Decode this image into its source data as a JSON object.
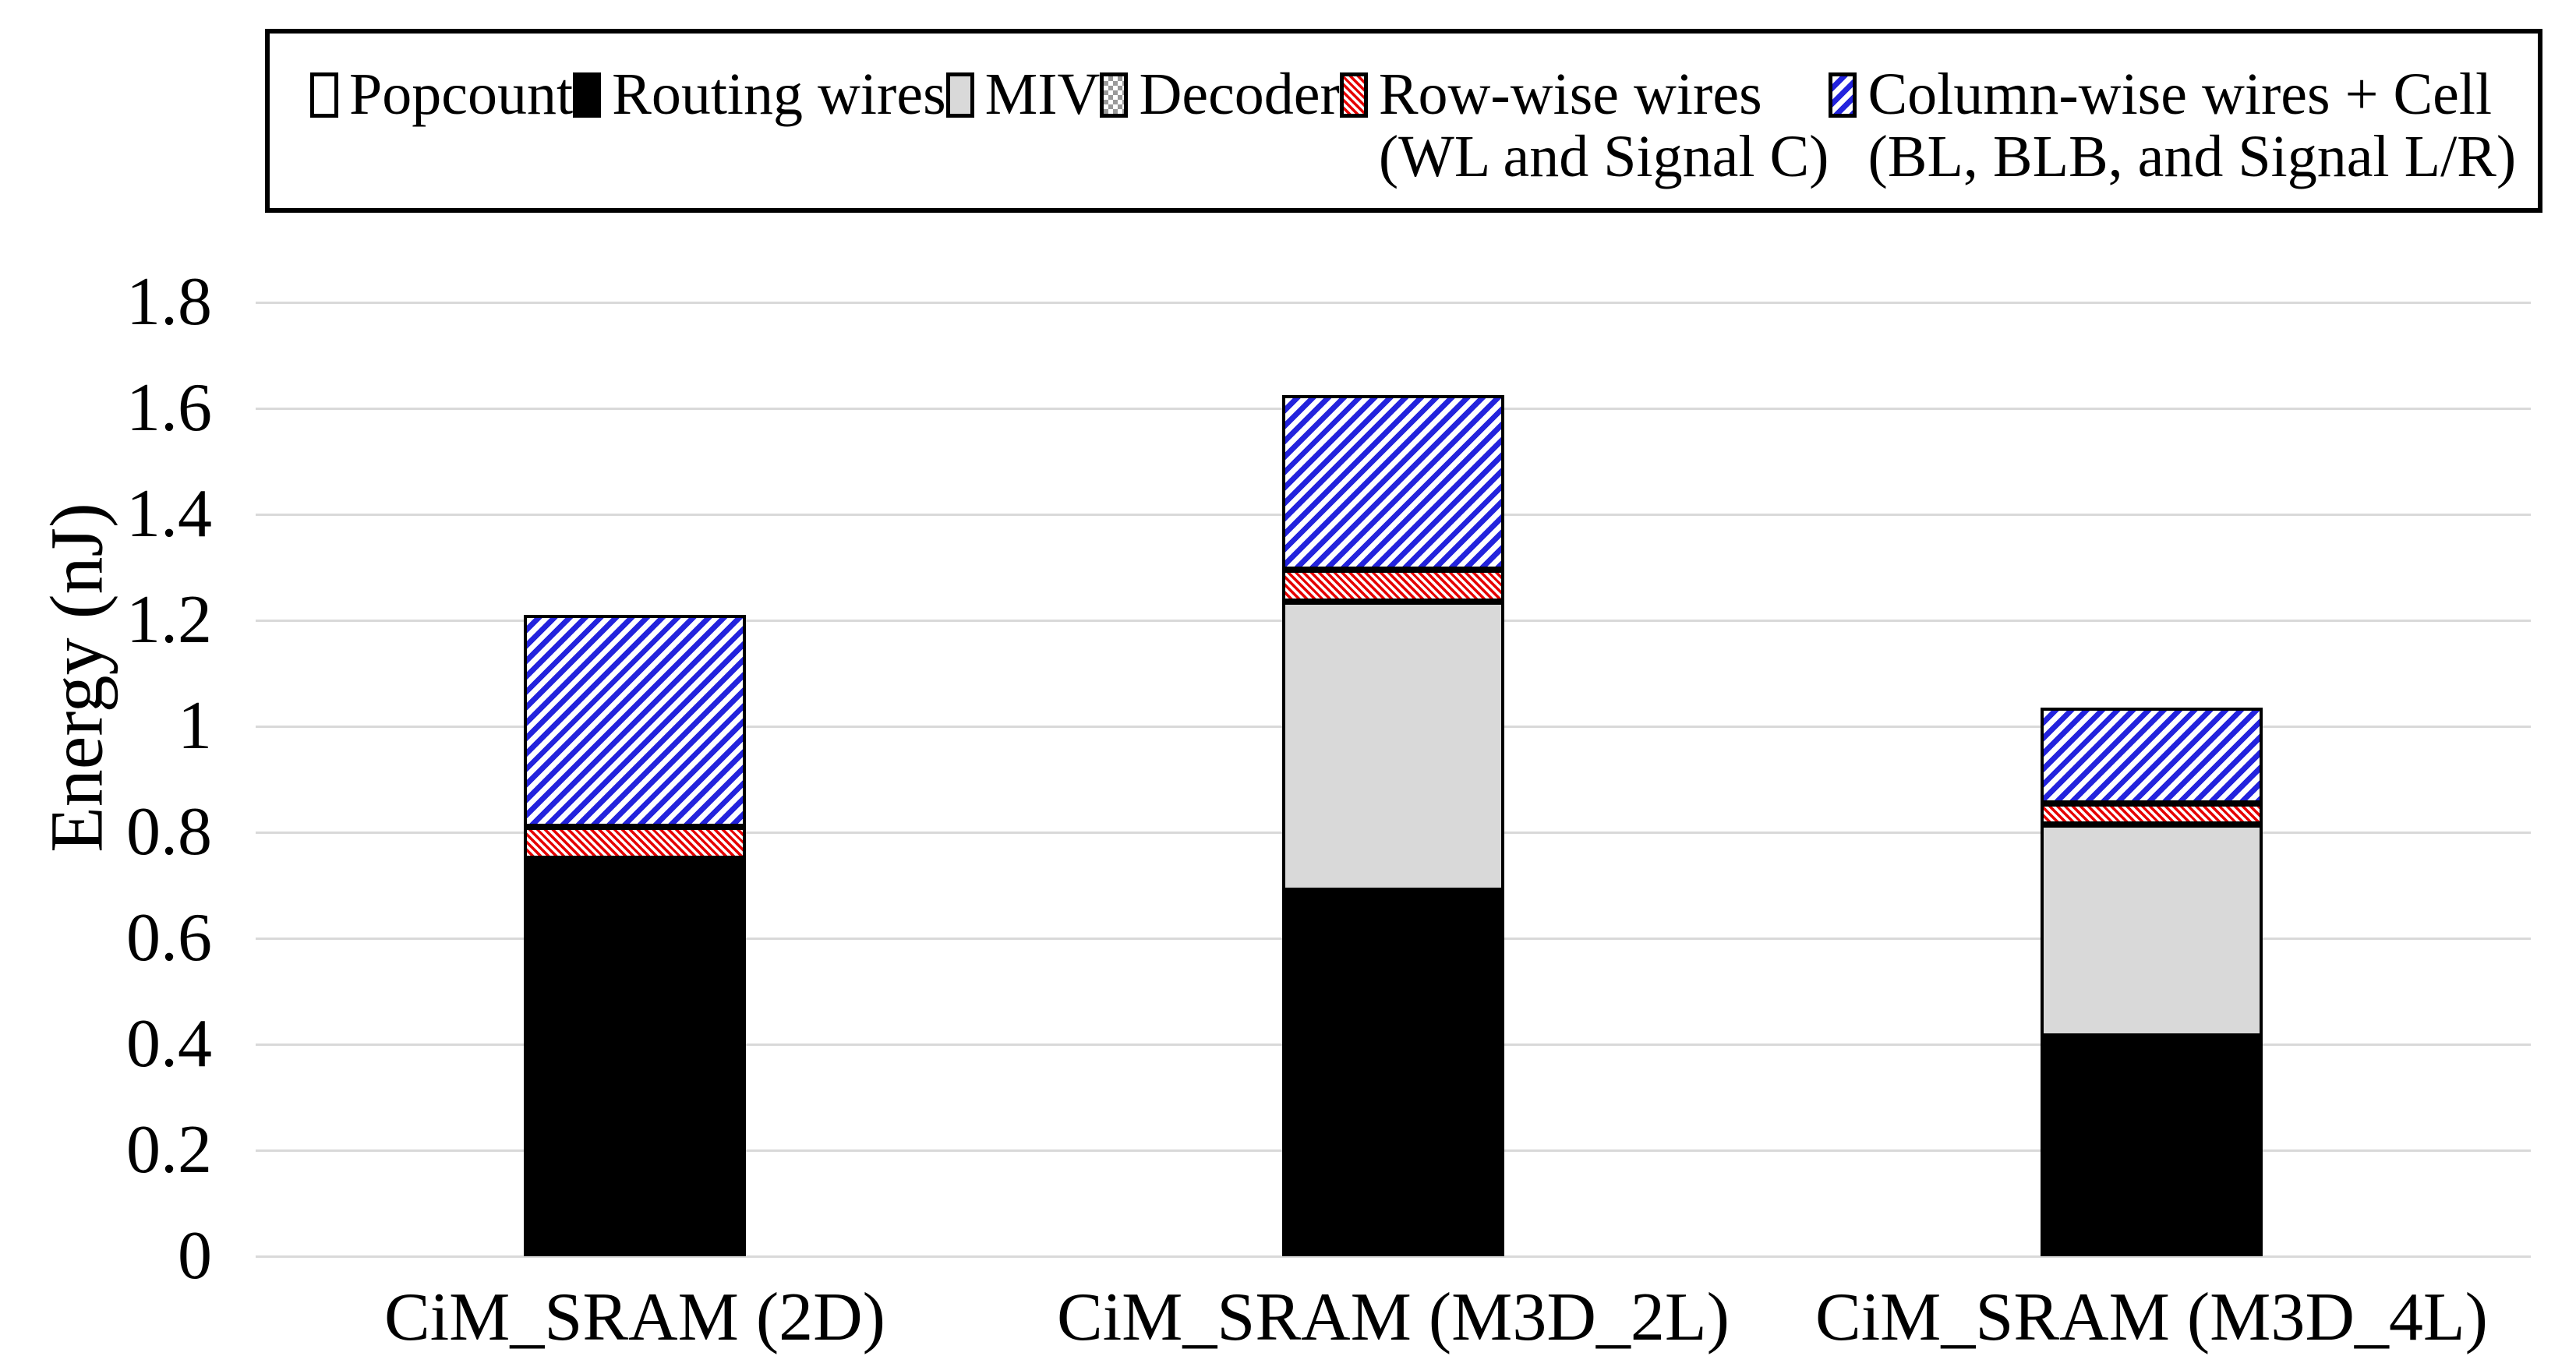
{
  "chart_data": {
    "type": "bar",
    "stacked": true,
    "title": "",
    "xlabel": "",
    "ylabel": "Energy (nJ)",
    "ylim": [
      0,
      1.8
    ],
    "ytick_step": 0.2,
    "ytick_labels": [
      "0",
      "0.2",
      "0.4",
      "0.6",
      "0.8",
      "1",
      "1.2",
      "1.4",
      "1.6",
      "1.8"
    ],
    "grid": true,
    "gridline_color": "#d9d9d9",
    "legend_position": "top-boxed",
    "categories": [
      "CiM_SRAM (2D)",
      "CiM_SRAM (M3D_2L)",
      "CiM_SRAM (M3D_4L)"
    ],
    "series": [
      {
        "name": "Popcount",
        "name2": "",
        "fill": "white",
        "color": "#ffffff",
        "values": [
          0,
          0,
          0
        ]
      },
      {
        "name": "Routing wires",
        "name2": "",
        "fill": "black",
        "color": "#000000",
        "values": [
          0.75,
          0.69,
          0.415
        ]
      },
      {
        "name": "MIV",
        "name2": "",
        "fill": "gray",
        "color": "#d9d9d9",
        "values": [
          0,
          0.545,
          0.4
        ]
      },
      {
        "name": "Decoder",
        "name2": "",
        "fill": "checker",
        "color": "#9a9a9a",
        "values": [
          0,
          0,
          0
        ]
      },
      {
        "name": "Row-wise wires",
        "name2": "(WL and Signal C)",
        "fill": "red-hatch",
        "color": "#e60000",
        "values": [
          0.06,
          0.06,
          0.04
        ]
      },
      {
        "name": "Column-wise wires + Cell",
        "name2": "(BL, BLB, and Signal L/R)",
        "fill": "blue-hatch",
        "color": "#2323dd",
        "values": [
          0.4,
          0.33,
          0.18
        ]
      }
    ],
    "totals": [
      1.21,
      1.625,
      1.035
    ]
  }
}
